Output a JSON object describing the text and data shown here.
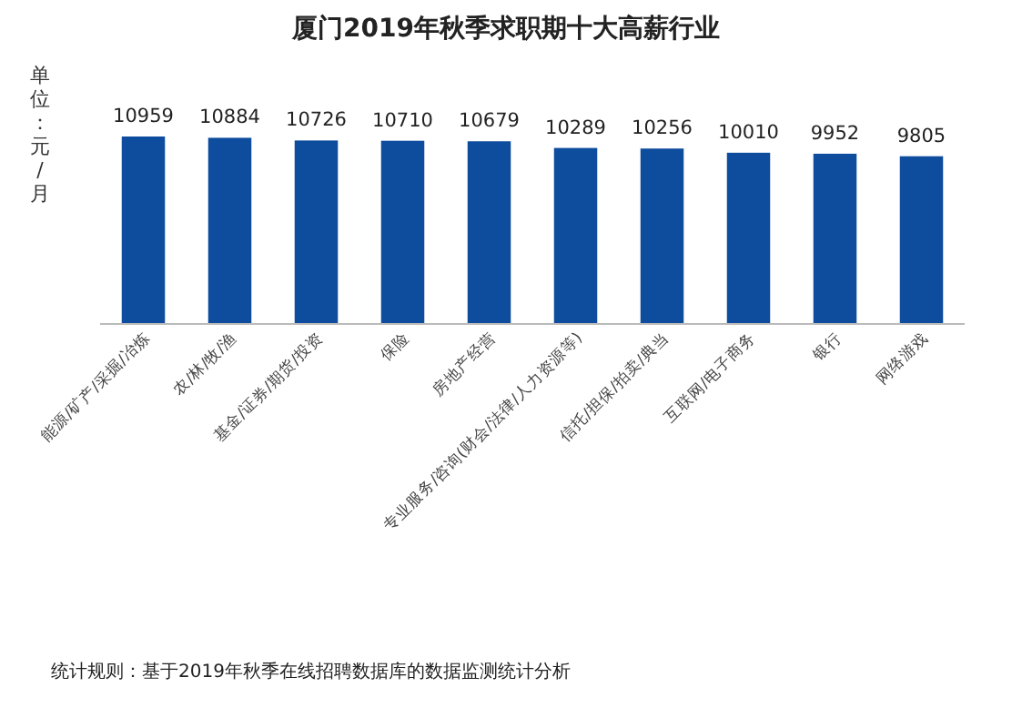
{
  "chart_data": {
    "type": "bar",
    "title": "厦门2019年秋季求职期十大高薪行业",
    "ylabel": "单位：元/月",
    "categories": [
      "能源/矿产/采掘/冶炼",
      "农/林/牧/渔",
      "基金/证券/期货/投资",
      "保险",
      "房地产经营",
      "专业服务/咨询(财会/法律/人力资源等)",
      "信托/担保/拍卖/典当",
      "互联网/电子商务",
      "银行",
      "网络游戏"
    ],
    "values": [
      10959,
      10884,
      10726,
      10710,
      10679,
      10289,
      10256,
      10010,
      9952,
      9805
    ],
    "color": "#0e4c9e",
    "data_labels": true,
    "annotations": [
      "统计规则：基于2019年秋季在线招聘数据库的数据监测统计分析"
    ]
  }
}
